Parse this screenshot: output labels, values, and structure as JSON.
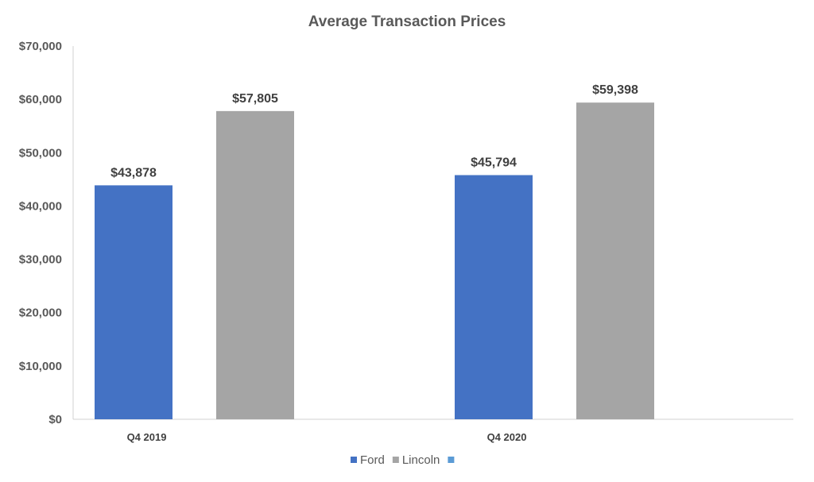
{
  "chart_data": {
    "type": "bar",
    "title": "Average Transaction Prices",
    "categories": [
      "Q4 2019",
      "Q4 2020"
    ],
    "series": [
      {
        "name": "Ford",
        "values": [
          43878,
          45794
        ],
        "color": "#4472c4"
      },
      {
        "name": "Lincoln",
        "values": [
          57805,
          59398
        ],
        "color": "#a5a5a5"
      },
      {
        "name": "",
        "values": [
          null,
          null
        ],
        "color": "#5b9bd5"
      }
    ],
    "data_labels": [
      [
        "$43,878",
        "$45,794"
      ],
      [
        "$57,805",
        "$59,398"
      ]
    ],
    "yticks": [
      "$0",
      "$10,000",
      "$20,000",
      "$30,000",
      "$40,000",
      "$50,000",
      "$60,000",
      "$70,000"
    ],
    "ylim": [
      0,
      70000
    ],
    "ytick_step": 10000,
    "grid": false,
    "legend_position": "bottom"
  }
}
